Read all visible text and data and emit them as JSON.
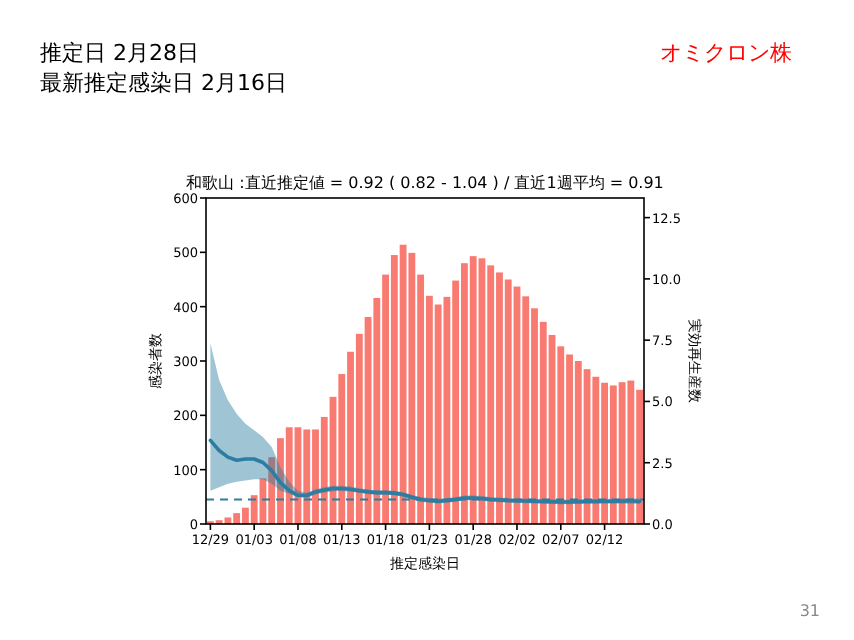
{
  "chart_data": {
    "type": "bar",
    "title": "和歌山 :直近推定値 = 0.92 ( 0.82 - 1.04 ) / 直近1週平均 = 0.91",
    "annotations": [
      "推定日  2月28日",
      "最新推定感染日  2月16日",
      "オミクロン株",
      "31"
    ],
    "xlabel": "推定感染日",
    "ylabel": "感染者数",
    "y2label": "実効再生産数",
    "categories": [
      "12/29",
      null,
      null,
      null,
      null,
      "01/03",
      null,
      null,
      null,
      null,
      "01/08",
      null,
      null,
      null,
      null,
      "01/13",
      null,
      null,
      null,
      null,
      "01/18",
      null,
      null,
      null,
      null,
      "01/23",
      null,
      null,
      null,
      null,
      "01/28",
      null,
      null,
      null,
      null,
      "02/02",
      null,
      null,
      null,
      null,
      "02/07",
      null,
      null,
      null,
      null,
      "02/12",
      null,
      null,
      null,
      null
    ],
    "ylim": [
      0,
      600
    ],
    "yticks": [
      0,
      100,
      200,
      300,
      400,
      500,
      600
    ],
    "y2lim": [
      0,
      13.3
    ],
    "y2ticks": [
      {
        "value": 0,
        "label": "0.0"
      },
      {
        "value": 2.5,
        "label": "2.5"
      },
      {
        "value": 5,
        "label": "5.0"
      },
      {
        "value": 7.5,
        "label": "7.5"
      },
      {
        "value": 10,
        "label": "10.0"
      },
      {
        "value": 12.5,
        "label": "12.5"
      }
    ],
    "ref_lines": [
      {
        "axis": "y2",
        "value": 1,
        "color": "#2b7ea1",
        "line_style": "dashed"
      }
    ],
    "series": [
      {
        "color": "#f87a70",
        "values": [
          5,
          7,
          12,
          20,
          30,
          53,
          84,
          123,
          158,
          178,
          178,
          174,
          174,
          197,
          234,
          276,
          317,
          350,
          381,
          416,
          459,
          495,
          514,
          499,
          459,
          420,
          404,
          418,
          448,
          480,
          493,
          489,
          476,
          463,
          450,
          437,
          419,
          397,
          372,
          348,
          327,
          312,
          300,
          285,
          271,
          260,
          255,
          261,
          264,
          247
        ]
      },
      {
        "type": "line",
        "axis": "y2",
        "color": "#2b7ea1",
        "values": [
          3.41,
          3.0,
          2.73,
          2.6,
          2.65,
          2.65,
          2.51,
          2.18,
          1.69,
          1.36,
          1.17,
          1.17,
          1.31,
          1.39,
          1.45,
          1.45,
          1.42,
          1.36,
          1.31,
          1.28,
          1.28,
          1.26,
          1.2,
          1.09,
          1.0,
          0.96,
          0.93,
          0.96,
          1.0,
          1.06,
          1.06,
          1.04,
          1.0,
          0.98,
          0.96,
          0.95,
          0.94,
          0.93,
          0.92,
          0.91,
          0.9,
          0.9,
          0.91,
          0.92,
          0.92,
          0.93,
          0.93,
          0.94,
          0.95,
          0.92
        ],
        "lower": [
          1.36,
          1.5,
          1.64,
          1.72,
          1.77,
          1.83,
          1.83,
          1.64,
          1.36,
          1.23,
          1.09,
          1.06,
          1.2,
          1.28,
          1.34,
          1.35,
          1.32,
          1.27,
          1.22,
          1.19,
          1.19,
          1.17,
          1.11,
          1.0,
          0.91,
          0.87,
          0.84,
          0.87,
          0.91,
          0.97,
          0.97,
          0.95,
          0.91,
          0.89,
          0.87,
          0.86,
          0.85,
          0.84,
          0.83,
          0.82,
          0.81,
          0.81,
          0.82,
          0.83,
          0.83,
          0.83,
          0.83,
          0.83,
          0.83,
          0.82
        ],
        "upper": [
          7.37,
          5.87,
          5.05,
          4.5,
          4.09,
          3.82,
          3.55,
          3.14,
          2.32,
          1.72,
          1.36,
          1.28,
          1.42,
          1.5,
          1.56,
          1.56,
          1.53,
          1.46,
          1.41,
          1.38,
          1.38,
          1.36,
          1.3,
          1.19,
          1.1,
          1.06,
          1.03,
          1.06,
          1.1,
          1.16,
          1.16,
          1.14,
          1.1,
          1.08,
          1.06,
          1.05,
          1.04,
          1.03,
          1.02,
          1.01,
          1.0,
          1.0,
          1.01,
          1.02,
          1.02,
          1.03,
          1.03,
          1.04,
          1.05,
          1.04
        ]
      }
    ]
  }
}
